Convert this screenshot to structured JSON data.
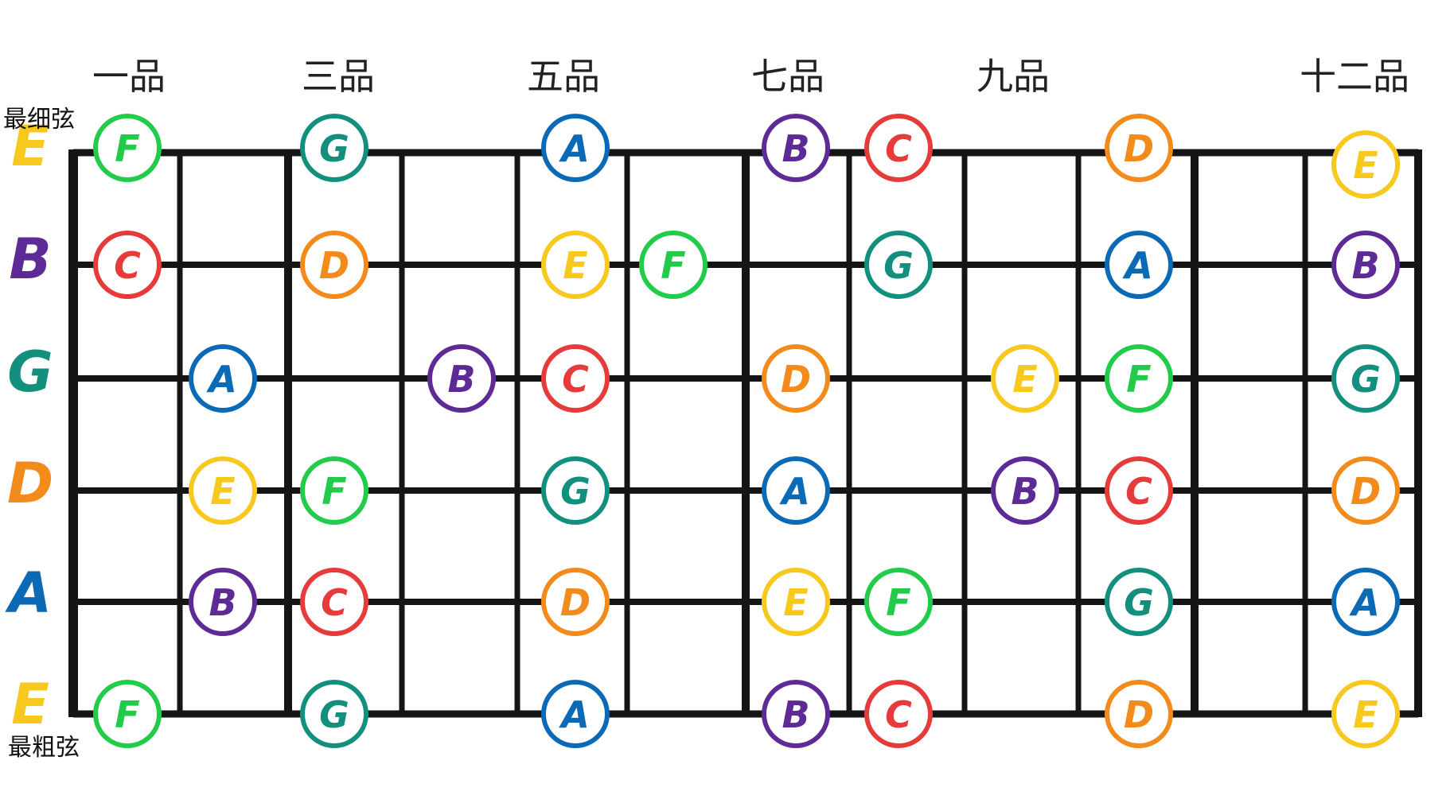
{
  "fret_labels": [
    "一品",
    "三品",
    "五品",
    "七品",
    "九品",
    "十二品"
  ],
  "edge_labels": {
    "thinnest": "最细弦",
    "thickest": "最粗弦"
  },
  "colors": {
    "E": "#f7c81e",
    "F": "#22cc4a",
    "G": "#138f7e",
    "A": "#0a6ab5",
    "B": "#5e2a96",
    "C": "#e53b3b",
    "D": "#f28a1c"
  },
  "strings": [
    {
      "name": "E",
      "notes": [
        {
          "fret": 1,
          "note": "F"
        },
        {
          "fret": 3,
          "note": "G"
        },
        {
          "fret": 5,
          "note": "A"
        },
        {
          "fret": 7,
          "note": "B"
        },
        {
          "fret": 8,
          "note": "C"
        },
        {
          "fret": 10,
          "note": "D"
        },
        {
          "fret": 12,
          "note": "E"
        }
      ]
    },
    {
      "name": "B",
      "notes": [
        {
          "fret": 1,
          "note": "C"
        },
        {
          "fret": 3,
          "note": "D"
        },
        {
          "fret": 5,
          "note": "E"
        },
        {
          "fret": 6,
          "note": "F"
        },
        {
          "fret": 8,
          "note": "G"
        },
        {
          "fret": 10,
          "note": "A"
        },
        {
          "fret": 12,
          "note": "B"
        }
      ]
    },
    {
      "name": "G",
      "notes": [
        {
          "fret": 2,
          "note": "A"
        },
        {
          "fret": 4,
          "note": "B"
        },
        {
          "fret": 5,
          "note": "C"
        },
        {
          "fret": 7,
          "note": "D"
        },
        {
          "fret": 9,
          "note": "E"
        },
        {
          "fret": 10,
          "note": "F"
        },
        {
          "fret": 12,
          "note": "G"
        }
      ]
    },
    {
      "name": "D",
      "notes": [
        {
          "fret": 2,
          "note": "E"
        },
        {
          "fret": 3,
          "note": "F"
        },
        {
          "fret": 5,
          "note": "G"
        },
        {
          "fret": 7,
          "note": "A"
        },
        {
          "fret": 9,
          "note": "B"
        },
        {
          "fret": 10,
          "note": "C"
        },
        {
          "fret": 12,
          "note": "D"
        }
      ]
    },
    {
      "name": "A",
      "notes": [
        {
          "fret": 2,
          "note": "B"
        },
        {
          "fret": 3,
          "note": "C"
        },
        {
          "fret": 5,
          "note": "D"
        },
        {
          "fret": 7,
          "note": "E"
        },
        {
          "fret": 8,
          "note": "F"
        },
        {
          "fret": 10,
          "note": "G"
        },
        {
          "fret": 12,
          "note": "A"
        }
      ]
    },
    {
      "name": "E",
      "notes": [
        {
          "fret": 1,
          "note": "F"
        },
        {
          "fret": 3,
          "note": "G"
        },
        {
          "fret": 5,
          "note": "A"
        },
        {
          "fret": 7,
          "note": "B"
        },
        {
          "fret": 8,
          "note": "C"
        },
        {
          "fret": 10,
          "note": "D"
        },
        {
          "fret": 12,
          "note": "E"
        }
      ]
    }
  ]
}
